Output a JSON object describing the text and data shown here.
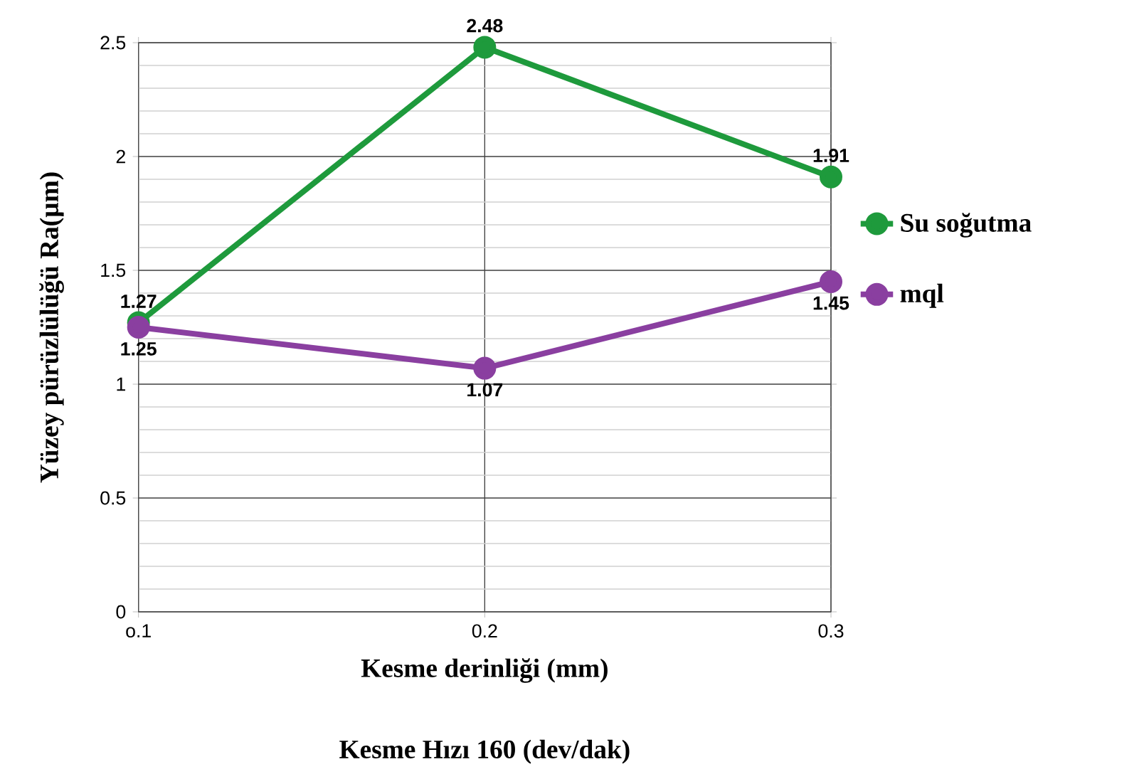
{
  "chart_data": {
    "type": "line",
    "xlabel": "Kesme derinliği (mm)",
    "ylabel": "Yüzey pürüzlülüğü Ra(µm)",
    "annotations": [
      "Kesme Hızı 160 (dev/dak)"
    ],
    "categories": [
      "o.1",
      "0.2",
      "0.3"
    ],
    "series": [
      {
        "name": "Su soğutma",
        "color": "#1e9a3c",
        "values": [
          1.27,
          2.48,
          1.91
        ]
      },
      {
        "name": "mql",
        "color": "#8a3fa0",
        "values": [
          1.25,
          1.07,
          1.45
        ]
      }
    ],
    "ylim": [
      0,
      2.5
    ],
    "yticks": [
      0,
      0.5,
      1,
      1.5,
      2,
      2.5
    ],
    "grid": true,
    "legend": "right",
    "marker": "circle",
    "line_style": "solid",
    "data_labels": true
  }
}
